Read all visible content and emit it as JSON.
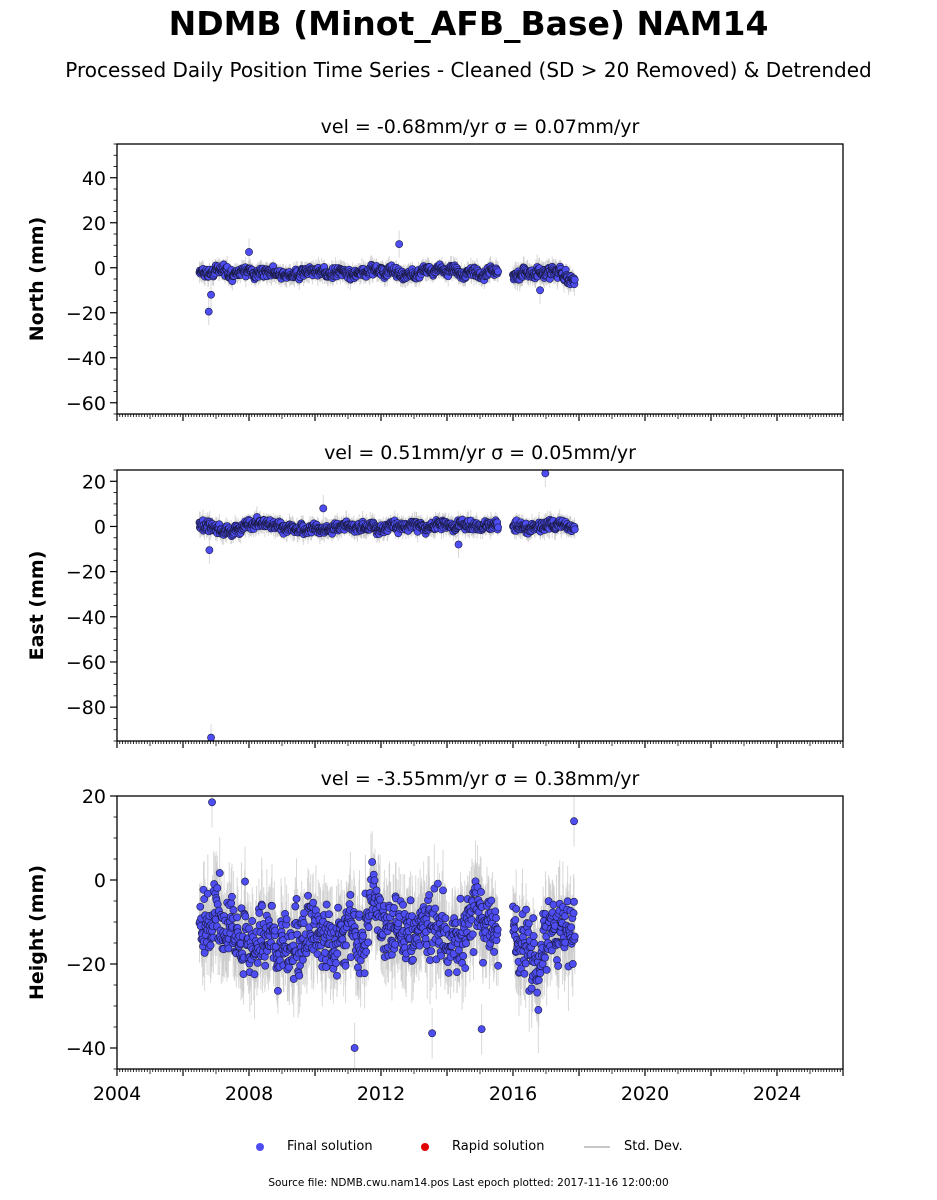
{
  "title": "NDMB (Minot_AFB_Base) NAM14",
  "subtitle": "Processed Daily Position Time Series - Cleaned (SD > 20 Removed) & Detrended",
  "legend": {
    "final_label": "Final solution",
    "rapid_label": "Rapid solution",
    "std_label": "Std. Dev.",
    "final_color": "#4d4df2",
    "rapid_color": "#e00000",
    "std_color": "#c8c8c8"
  },
  "footer": "Source file: NDMB.cwu.nam14.pos  Last epoch plotted: 2017-11-16 12:00:00",
  "chart_data": [
    {
      "type": "scatter",
      "title": "vel = -0.68mm/yr   σ = 0.07mm/yr",
      "ylabel": "North (mm)",
      "xlim": [
        2004.0,
        2026.0
      ],
      "ylim": [
        -65,
        55
      ],
      "yticks": [
        40,
        20,
        0,
        -20,
        -40,
        -60
      ],
      "xticks": [],
      "segments": [
        {
          "start": 2006.5,
          "end": 2015.55,
          "level": -2,
          "spread": 1.8,
          "std": 3.5
        },
        {
          "start": 2016.0,
          "end": 2017.88,
          "level": -3,
          "spread": 2.0,
          "std": 4.0
        }
      ],
      "outliers": [
        [
          2006.78,
          -19.5
        ],
        [
          2006.85,
          -12
        ],
        [
          2008.0,
          7
        ],
        [
          2012.55,
          10.5
        ],
        [
          2016.82,
          -10
        ]
      ]
    },
    {
      "type": "scatter",
      "title": "vel = 0.51mm/yr   σ = 0.05mm/yr",
      "ylabel": "East (mm)",
      "xlim": [
        2004.0,
        2026.0
      ],
      "ylim": [
        -95,
        25
      ],
      "yticks": [
        20,
        0,
        -20,
        -40,
        -60,
        -80
      ],
      "xticks": [],
      "segments": [
        {
          "start": 2006.5,
          "end": 2015.55,
          "level": 0,
          "spread": 1.8,
          "std": 3.5
        },
        {
          "start": 2016.0,
          "end": 2017.88,
          "level": 0,
          "spread": 1.8,
          "std": 3.5
        }
      ],
      "outliers": [
        [
          2006.85,
          -93.5
        ],
        [
          2006.8,
          -10.5
        ],
        [
          2010.25,
          8
        ],
        [
          2014.35,
          -8
        ],
        [
          2016.98,
          23.5
        ]
      ]
    },
    {
      "type": "scatter",
      "title": "vel = -3.55mm/yr   σ = 0.38mm/yr",
      "ylabel": "Height (mm)",
      "xlim": [
        2004.0,
        2026.0
      ],
      "ylim": [
        -45,
        20
      ],
      "yticks": [
        20,
        0,
        -20,
        -40
      ],
      "xticks": [
        "2004",
        "2008",
        "2012",
        "2016",
        "2020",
        "2024"
      ],
      "segments": [
        {
          "start": 2006.5,
          "end": 2015.55,
          "level": -12,
          "spread": 7.0,
          "std": 8.0
        },
        {
          "start": 2016.0,
          "end": 2017.88,
          "level": -12,
          "spread": 7.0,
          "std": 8.0
        }
      ],
      "outliers": [
        [
          2006.88,
          18.5
        ],
        [
          2011.2,
          -40
        ],
        [
          2013.55,
          -36.5
        ],
        [
          2015.05,
          -35.5
        ],
        [
          2017.85,
          14
        ]
      ]
    }
  ]
}
